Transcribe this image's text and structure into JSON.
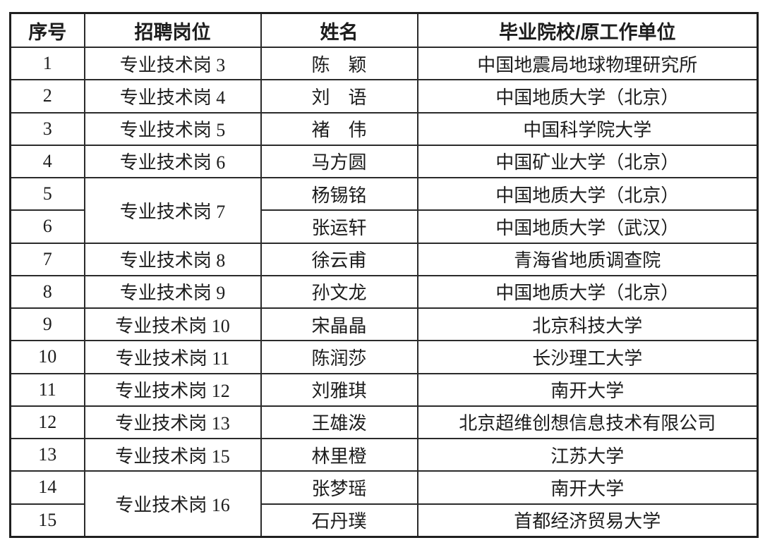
{
  "colors": {
    "background": "#ffffff",
    "text": "#1c1c1c",
    "border": "#2b2b2b"
  },
  "table": {
    "columns": [
      {
        "key": "index",
        "label": "序号"
      },
      {
        "key": "position",
        "label": "招聘岗位"
      },
      {
        "key": "name",
        "label": "姓名"
      },
      {
        "key": "school",
        "label": "毕业院校/原工作单位"
      }
    ],
    "rows": [
      {
        "index": "1",
        "position": "专业技术岗 3",
        "name": "陈　颖",
        "school": "中国地震局地球物理研究所"
      },
      {
        "index": "2",
        "position": "专业技术岗 4",
        "name": "刘　语",
        "school": "中国地质大学（北京）"
      },
      {
        "index": "3",
        "position": "专业技术岗 5",
        "name": "褚　伟",
        "school": "中国科学院大学"
      },
      {
        "index": "4",
        "position": "专业技术岗 6",
        "name": "马方圆",
        "school": "中国矿业大学（北京）"
      },
      {
        "index": "5",
        "position": "专业技术岗 7",
        "position_rowspan": 2,
        "name": "杨锡铭",
        "school": "中国地质大学（北京）"
      },
      {
        "index": "6",
        "name": "张运轩",
        "school": "中国地质大学（武汉）"
      },
      {
        "index": "7",
        "position": "专业技术岗 8",
        "name": "徐云甫",
        "school": "青海省地质调查院"
      },
      {
        "index": "8",
        "position": "专业技术岗 9",
        "name": "孙文龙",
        "school": "中国地质大学（北京）"
      },
      {
        "index": "9",
        "position": "专业技术岗 10",
        "name": "宋晶晶",
        "school": "北京科技大学"
      },
      {
        "index": "10",
        "position": "专业技术岗 11",
        "name": "陈润莎",
        "school": "长沙理工大学"
      },
      {
        "index": "11",
        "position": "专业技术岗 12",
        "name": "刘雅琪",
        "school": "南开大学"
      },
      {
        "index": "12",
        "position": "专业技术岗 13",
        "name": "王雄泼",
        "school": "北京超维创想信息技术有限公司"
      },
      {
        "index": "13",
        "position": "专业技术岗 15",
        "name": "林里橙",
        "school": "江苏大学"
      },
      {
        "index": "14",
        "position": "专业技术岗 16",
        "position_rowspan": 2,
        "name": "张梦瑶",
        "school": "南开大学"
      },
      {
        "index": "15",
        "name": "石丹璞",
        "school": "首都经济贸易大学"
      }
    ]
  }
}
